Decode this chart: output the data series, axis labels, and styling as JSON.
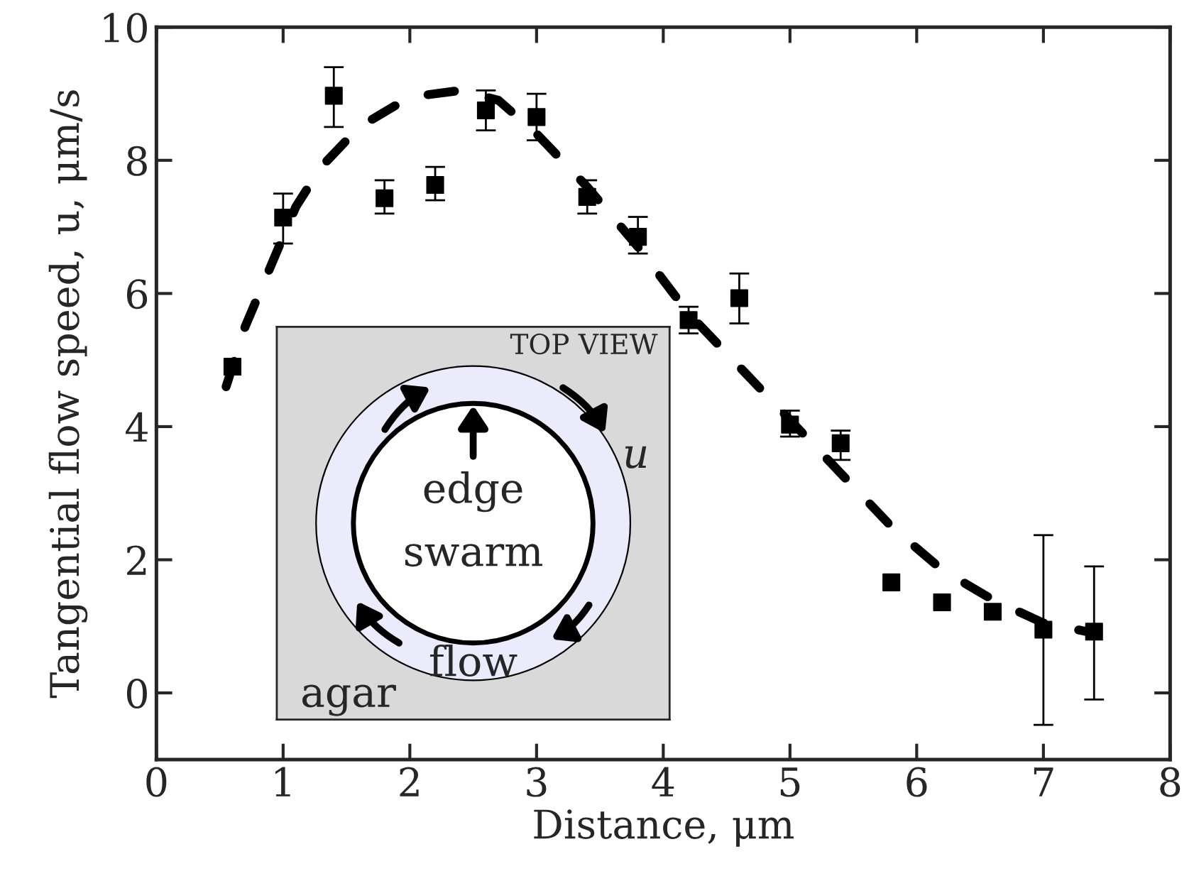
{
  "chart_data": {
    "type": "scatter",
    "xlabel": "Distance, μm",
    "ylabel": "Tangential flow speed, u, μm/s",
    "xlim": [
      0,
      8
    ],
    "ylim": [
      -1,
      10
    ],
    "xticks": [
      0,
      1,
      2,
      3,
      4,
      5,
      6,
      7,
      8
    ],
    "yticks": [
      0,
      2,
      4,
      6,
      8,
      10
    ],
    "grid": false,
    "legend": false,
    "series": [
      {
        "color": "#000000",
        "marker": "square",
        "x": [
          0.6,
          1.0,
          1.4,
          1.8,
          2.2,
          2.6,
          3.0,
          3.4,
          3.8,
          4.2,
          4.6,
          5.0,
          5.4,
          5.8,
          6.2,
          6.6,
          7.0,
          7.4
        ],
        "values": [
          4.9,
          7.14,
          8.97,
          7.43,
          7.63,
          8.75,
          8.65,
          7.45,
          6.85,
          5.6,
          5.93,
          4.03,
          3.75,
          1.66,
          1.36,
          1.22,
          0.95,
          0.92
        ],
        "errors": [
          null,
          [
            6.75,
            7.5
          ],
          [
            8.5,
            9.4
          ],
          [
            7.2,
            7.7
          ],
          [
            7.4,
            7.9
          ],
          [
            8.45,
            9.05
          ],
          [
            8.3,
            9.0
          ],
          [
            7.2,
            7.7
          ],
          [
            6.6,
            7.15
          ],
          [
            5.4,
            5.8
          ],
          [
            5.55,
            6.3
          ],
          [
            3.85,
            4.24
          ],
          [
            3.5,
            3.94
          ],
          null,
          null,
          null,
          [
            -0.48,
            2.37
          ],
          [
            -0.1,
            1.9
          ]
        ]
      },
      {
        "type": "line",
        "color": "#000000",
        "line_style": "dashed",
        "x": [
          0.55,
          0.7,
          0.9,
          1.1,
          1.3,
          1.6,
          2.0,
          2.4,
          2.7,
          3.0,
          3.4,
          3.8,
          4.2,
          4.6,
          5.0,
          5.4,
          5.8,
          6.2,
          6.6,
          7.0,
          7.4
        ],
        "values": [
          4.6,
          5.5,
          6.4,
          7.3,
          7.9,
          8.5,
          8.95,
          9.05,
          8.9,
          8.4,
          7.6,
          6.7,
          5.7,
          4.9,
          4.1,
          3.3,
          2.5,
          1.85,
          1.4,
          1.05,
          0.9
        ]
      }
    ],
    "annotations": [
      "TOP VIEW",
      "edge",
      "swarm",
      "flow",
      "agar",
      "u"
    ]
  }
}
